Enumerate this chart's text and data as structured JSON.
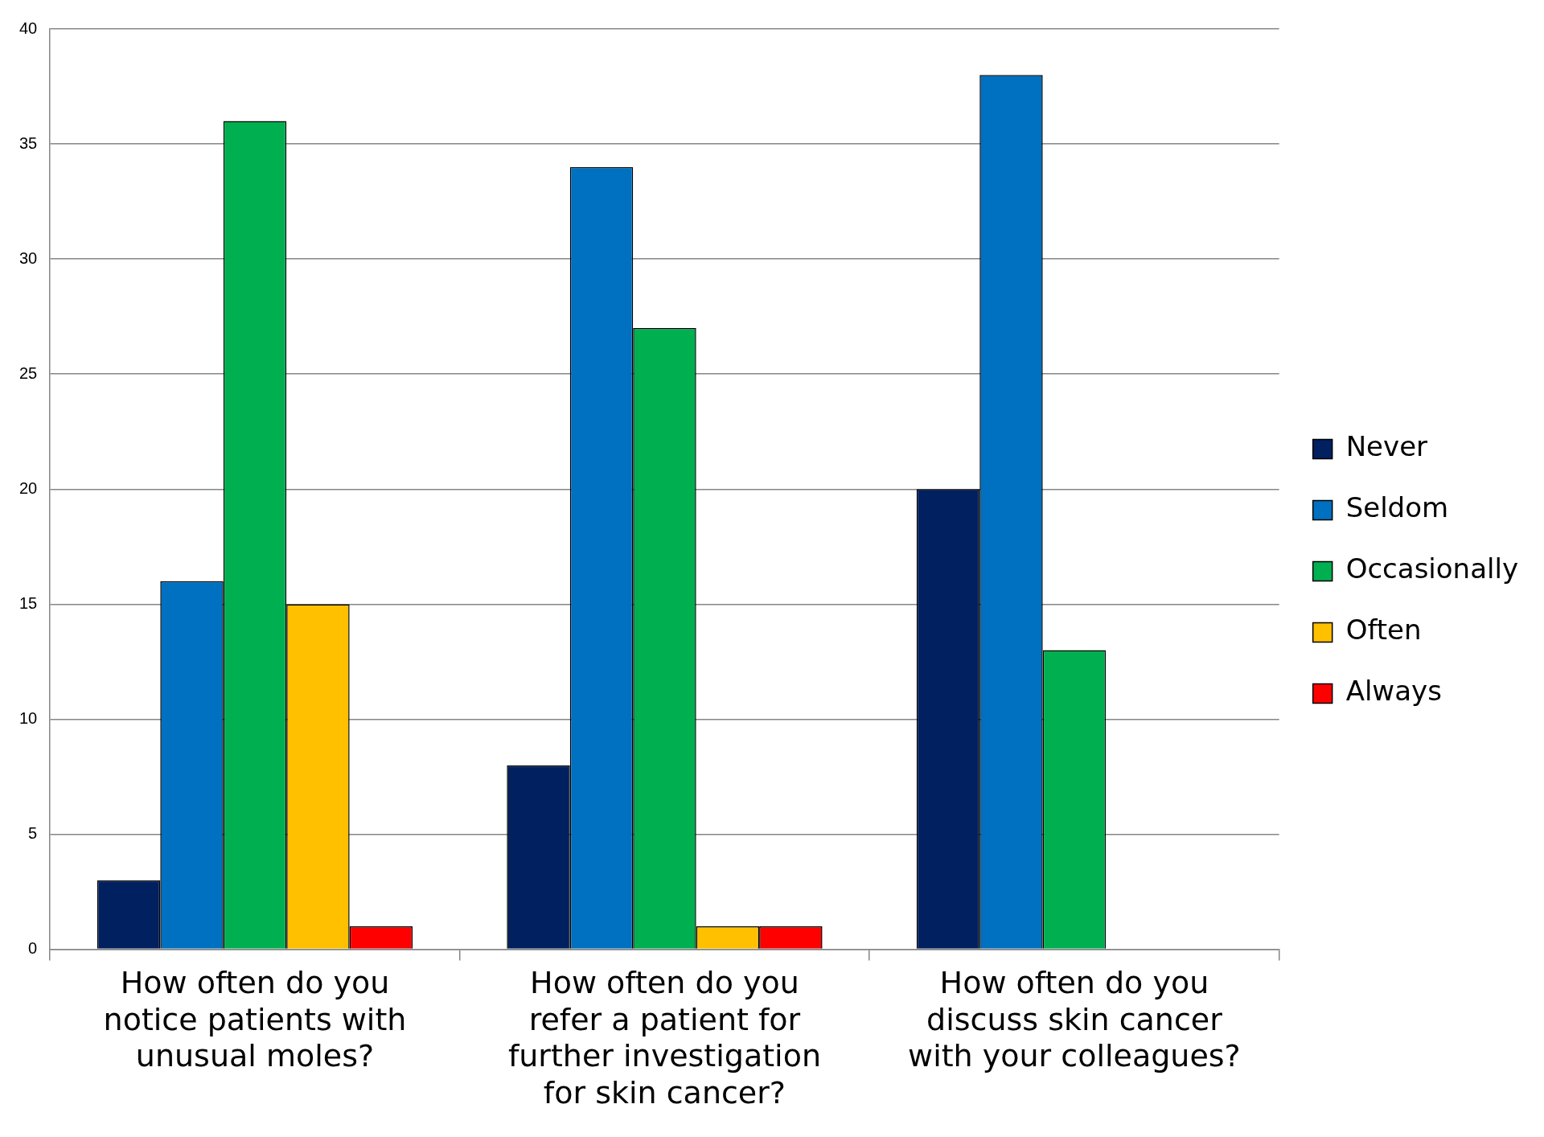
{
  "chart_data": {
    "type": "bar",
    "categories": [
      "How often do you notice patients with unusual moles?",
      "How often do you refer a patient for further investigation for skin cancer?",
      "How often do you discuss skin cancer with your colleagues?"
    ],
    "series": [
      {
        "name": "Never",
        "color": "#002060",
        "values": [
          3,
          8,
          20
        ]
      },
      {
        "name": "Seldom",
        "color": "#0070c0",
        "values": [
          16,
          34,
          38
        ]
      },
      {
        "name": "Occasionally",
        "color": "#00b050",
        "values": [
          36,
          27,
          13
        ]
      },
      {
        "name": "Often",
        "color": "#ffc000",
        "values": [
          15,
          1,
          null
        ]
      },
      {
        "name": "Always",
        "color": "#ff0000",
        "values": [
          1,
          1,
          null
        ]
      }
    ],
    "ylim": [
      0,
      40
    ],
    "yticks": [
      0,
      5,
      10,
      15,
      20,
      25,
      30,
      35,
      40
    ],
    "grid": "y",
    "legend": "right"
  }
}
